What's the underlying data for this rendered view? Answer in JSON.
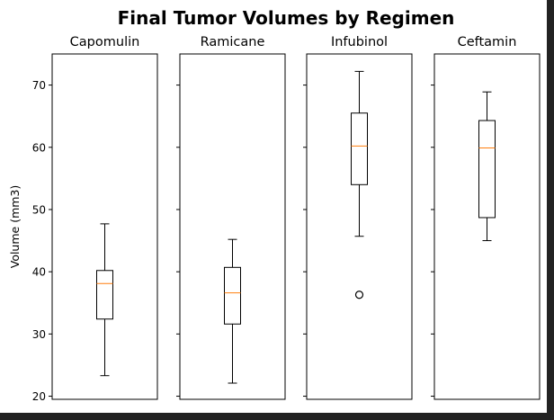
{
  "chart_data": {
    "type": "box",
    "title": "Final Tumor Volumes by Regimen",
    "ylabel": "Volume (mm3)",
    "ylim": [
      19.5,
      75
    ],
    "yticks": [
      20,
      30,
      40,
      50,
      60,
      70
    ],
    "shared_y": true,
    "grid": false,
    "colors": {
      "box": "#000000",
      "median": "#ff7f0e",
      "background": "#ffffff"
    },
    "panels": [
      {
        "name": "Capomulin",
        "whisker_low": 23.3,
        "q1": 32.4,
        "median": 38.1,
        "q3": 40.2,
        "whisker_high": 47.7,
        "outliers": []
      },
      {
        "name": "Ramicane",
        "whisker_low": 22.1,
        "q1": 31.6,
        "median": 36.6,
        "q3": 40.7,
        "whisker_high": 45.2,
        "outliers": []
      },
      {
        "name": "Infubinol",
        "whisker_low": 45.7,
        "q1": 54.0,
        "median": 60.2,
        "q3": 65.5,
        "whisker_high": 72.2,
        "outliers": [
          36.3
        ]
      },
      {
        "name": "Ceftamin",
        "whisker_low": 45.0,
        "q1": 48.7,
        "median": 59.9,
        "q3": 64.3,
        "whisker_high": 68.9,
        "outliers": []
      }
    ]
  }
}
